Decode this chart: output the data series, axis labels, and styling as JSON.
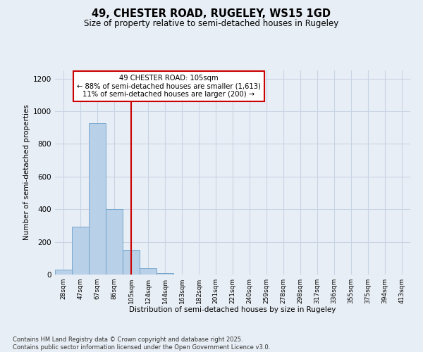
{
  "title_line1": "49, CHESTER ROAD, RUGELEY, WS15 1GD",
  "title_line2": "Size of property relative to semi-detached houses in Rugeley",
  "bar_labels": [
    "28sqm",
    "47sqm",
    "67sqm",
    "86sqm",
    "105sqm",
    "124sqm",
    "144sqm",
    "163sqm",
    "182sqm",
    "201sqm",
    "221sqm",
    "240sqm",
    "259sqm",
    "278sqm",
    "298sqm",
    "317sqm",
    "336sqm",
    "355sqm",
    "375sqm",
    "394sqm",
    "413sqm"
  ],
  "bar_values": [
    30,
    295,
    925,
    400,
    150,
    40,
    10,
    0,
    0,
    0,
    0,
    0,
    0,
    0,
    0,
    0,
    0,
    0,
    0,
    0,
    0
  ],
  "bar_color": "#b8d0e8",
  "bar_edge_color": "#6a9fc8",
  "grid_color": "#c8d4e4",
  "vline_x": 4,
  "vline_color": "#cc0000",
  "annotation_title": "49 CHESTER ROAD: 105sqm",
  "annotation_line1": "← 88% of semi-detached houses are smaller (1,613)",
  "annotation_line2": "11% of semi-detached houses are larger (200) →",
  "annotation_box_color": "#cc0000",
  "xlabel": "Distribution of semi-detached houses by size in Rugeley",
  "ylabel": "Number of semi-detached properties",
  "ylim": [
    0,
    1250
  ],
  "yticks": [
    0,
    200,
    400,
    600,
    800,
    1000,
    1200
  ],
  "footnote_line1": "Contains HM Land Registry data © Crown copyright and database right 2025.",
  "footnote_line2": "Contains public sector information licensed under the Open Government Licence v3.0.",
  "bg_color": "#e8eef5",
  "plot_bg_color": "#e8eef5"
}
